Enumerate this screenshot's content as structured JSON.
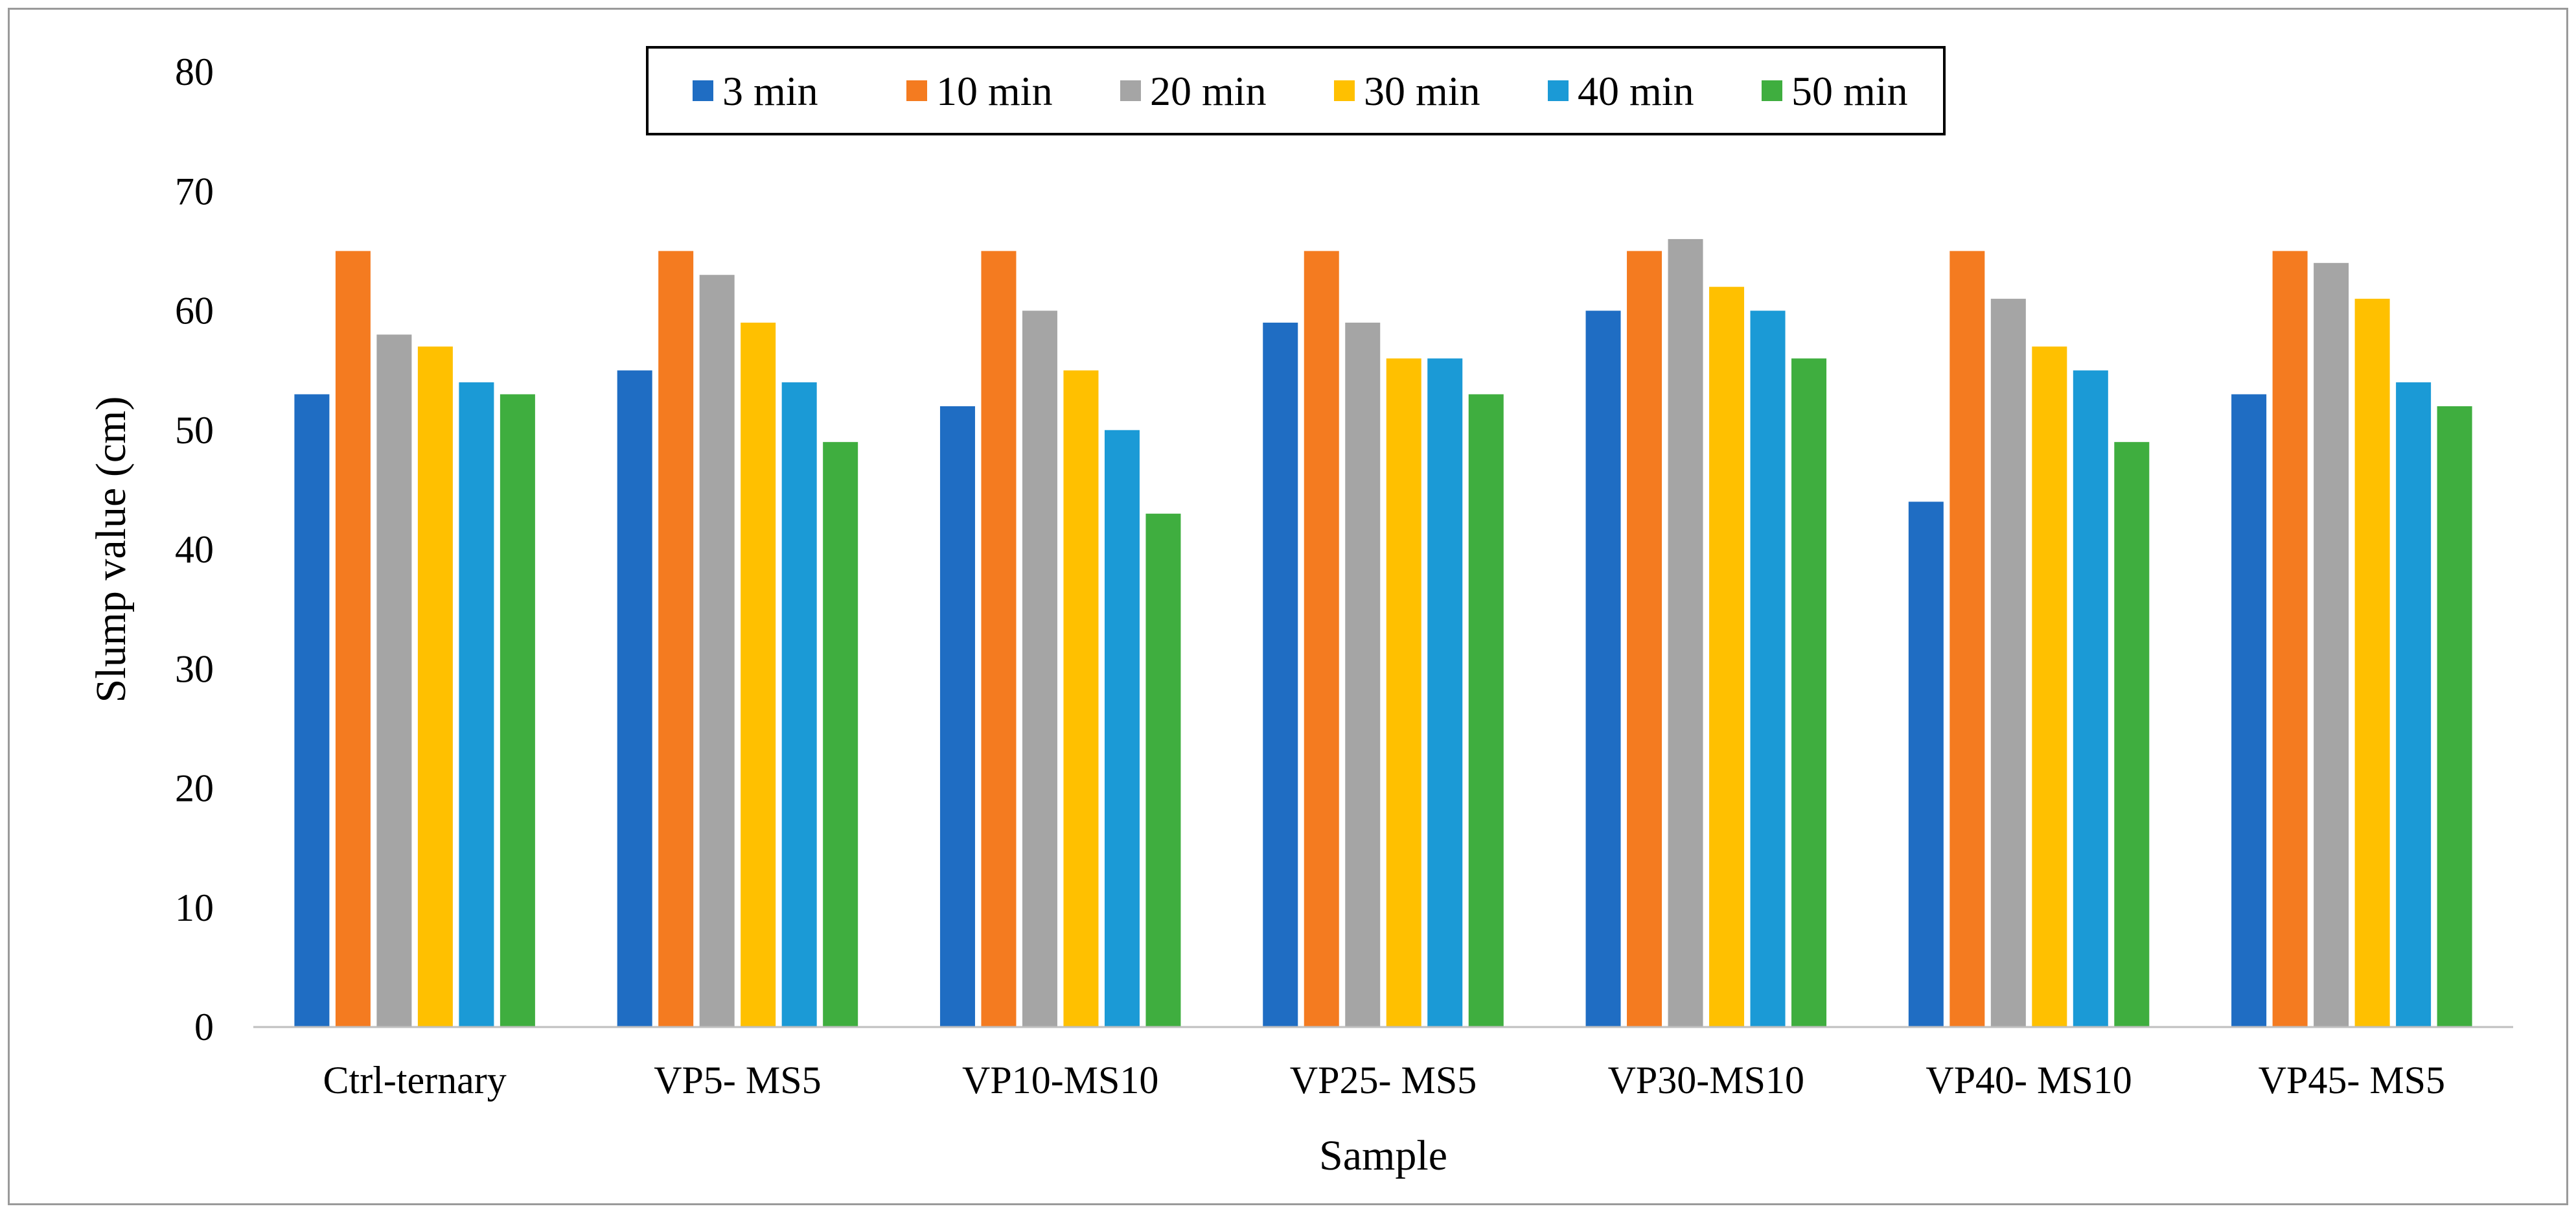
{
  "chart_data": {
    "type": "bar",
    "title": "",
    "xlabel": "Sample",
    "ylabel": "Slump value (cm)",
    "ylim": [
      0,
      80
    ],
    "yticks": [
      "0",
      "10",
      "20",
      "30",
      "40",
      "50",
      "60",
      "70",
      "80"
    ],
    "grid": false,
    "legend_position": "top-center",
    "categories": [
      "Ctrl-ternary",
      "VP5- MS5",
      "VP10-MS10",
      "VP25- MS5",
      "VP30-MS10",
      "VP40- MS10",
      "VP45- MS5"
    ],
    "series": [
      {
        "name": "3 min",
        "color": "#1F6DC3",
        "values": [
          53,
          55,
          52,
          59,
          60,
          44,
          53
        ]
      },
      {
        "name": "10 min",
        "color": "#F47B20",
        "values": [
          65,
          65,
          65,
          65,
          65,
          65,
          65
        ]
      },
      {
        "name": "20 min",
        "color": "#A5A5A5",
        "values": [
          58,
          63,
          60,
          59,
          66,
          61,
          64
        ]
      },
      {
        "name": "30 min",
        "color": "#FFC000",
        "values": [
          57,
          59,
          55,
          56,
          62,
          57,
          61
        ]
      },
      {
        "name": "40 min",
        "color": "#1B9AD6",
        "values": [
          54,
          54,
          50,
          56,
          60,
          55,
          54
        ]
      },
      {
        "name": "50 min",
        "color": "#3FAE3F",
        "values": [
          53,
          49,
          43,
          53,
          56,
          49,
          52
        ]
      }
    ]
  }
}
